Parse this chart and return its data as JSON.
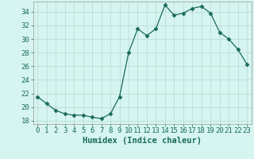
{
  "title": "",
  "xlabel": "Humidex (Indice chaleur)",
  "ylabel": "",
  "x": [
    0,
    1,
    2,
    3,
    4,
    5,
    6,
    7,
    8,
    9,
    10,
    11,
    12,
    13,
    14,
    15,
    16,
    17,
    18,
    19,
    20,
    21,
    22,
    23
  ],
  "y": [
    21.5,
    20.5,
    19.5,
    19.0,
    18.8,
    18.8,
    18.5,
    18.3,
    19.0,
    21.5,
    28.0,
    31.5,
    30.5,
    31.5,
    35.0,
    33.5,
    33.8,
    34.5,
    34.8,
    33.8,
    31.0,
    30.0,
    28.5,
    26.3
  ],
  "line_color": "#1a6b5a",
  "marker": "D",
  "marker_size": 2.5,
  "bg_color": "#d6f5f0",
  "grid_color": "#b8d8d4",
  "xlim": [
    -0.5,
    23.5
  ],
  "ylim": [
    17.5,
    35.5
  ],
  "yticks": [
    18,
    20,
    22,
    24,
    26,
    28,
    30,
    32,
    34
  ],
  "xticks": [
    0,
    1,
    2,
    3,
    4,
    5,
    6,
    7,
    8,
    9,
    10,
    11,
    12,
    13,
    14,
    15,
    16,
    17,
    18,
    19,
    20,
    21,
    22,
    23
  ],
  "tick_fontsize": 6.5,
  "label_fontsize": 7.5
}
